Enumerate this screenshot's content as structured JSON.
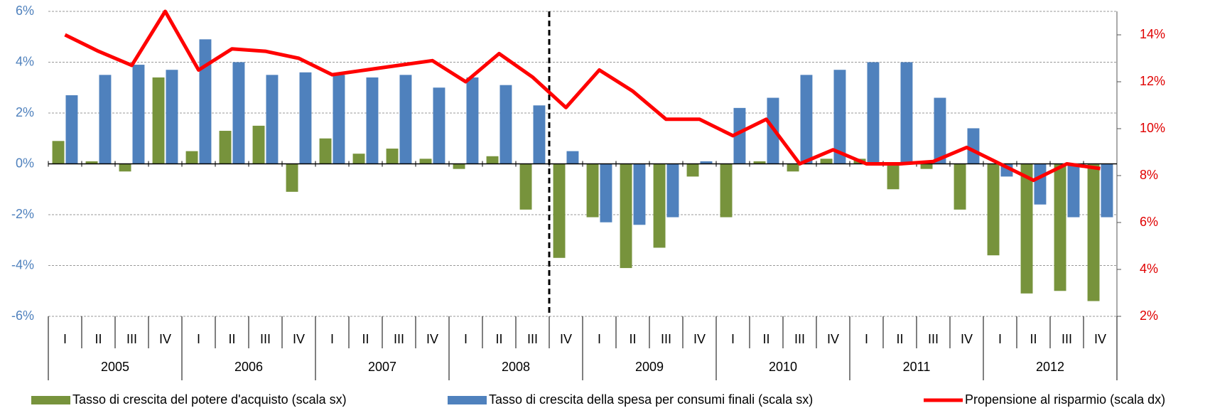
{
  "chart_data": {
    "type": "bar",
    "categories": [
      "I",
      "II",
      "III",
      "IV",
      "I",
      "II",
      "III",
      "IV",
      "I",
      "II",
      "III",
      "IV",
      "I",
      "II",
      "III",
      "IV",
      "I",
      "II",
      "III",
      "IV",
      "I",
      "II",
      "III",
      "IV",
      "I",
      "II",
      "III",
      "IV",
      "I",
      "II",
      "III",
      "IV"
    ],
    "group_labels": [
      "2005",
      "2006",
      "2007",
      "2008",
      "2009",
      "2010",
      "2011",
      "2012"
    ],
    "series": [
      {
        "name": "Tasso di crescita del potere d'acquisto (scala sx)",
        "type": "bar",
        "color": "#77933c",
        "values": [
          0.9,
          0.1,
          -0.3,
          3.4,
          0.5,
          1.3,
          1.5,
          -1.1,
          1.0,
          0.4,
          0.6,
          0.2,
          -0.2,
          0.3,
          -1.8,
          -3.7,
          -2.1,
          -4.1,
          -3.3,
          -0.5,
          -2.1,
          0.1,
          -0.3,
          0.2,
          0.2,
          -1.0,
          -0.2,
          -1.8,
          -3.6,
          -5.1,
          -5.0,
          -5.4
        ]
      },
      {
        "name": "Tasso di crescita della spesa per consumi finali (scala sx)",
        "type": "bar",
        "color": "#4f81bd",
        "values": [
          2.7,
          3.5,
          3.9,
          3.7,
          4.9,
          4.0,
          3.5,
          3.6,
          3.5,
          3.4,
          3.5,
          3.0,
          3.4,
          3.1,
          2.3,
          0.5,
          -2.3,
          -2.4,
          -2.1,
          0.1,
          2.2,
          2.6,
          3.5,
          3.7,
          4.0,
          4.0,
          2.6,
          1.4,
          -0.5,
          -1.6,
          -2.1,
          -2.1
        ]
      },
      {
        "name": "Propensione al risparmio (scala dx)",
        "type": "line",
        "axis": "y2",
        "color": "#ff0000",
        "values": [
          14.0,
          13.3,
          12.7,
          15.0,
          12.5,
          13.4,
          13.3,
          13.0,
          12.3,
          12.5,
          12.7,
          12.9,
          12.0,
          13.2,
          12.2,
          10.9,
          12.5,
          11.6,
          10.4,
          10.4,
          9.7,
          10.4,
          8.5,
          9.1,
          8.5,
          8.5,
          8.6,
          9.2,
          8.5,
          7.8,
          8.5,
          8.3
        ]
      }
    ],
    "ylim": [
      -6,
      6
    ],
    "yticks": [
      {
        "value": -6,
        "label": "-6%"
      },
      {
        "value": -4,
        "label": "-4%"
      },
      {
        "value": -2,
        "label": "-2%"
      },
      {
        "value": 0,
        "label": "0%"
      },
      {
        "value": 2,
        "label": "2%"
      },
      {
        "value": 4,
        "label": "4%"
      },
      {
        "value": 6,
        "label": "6%"
      }
    ],
    "y2lim": [
      2,
      15
    ],
    "y2ticks": [
      {
        "value": 2,
        "label": "2%"
      },
      {
        "value": 4,
        "label": "4%"
      },
      {
        "value": 6,
        "label": "6%"
      },
      {
        "value": 8,
        "label": "8%"
      },
      {
        "value": 10,
        "label": "10%"
      },
      {
        "value": 12,
        "label": "12%"
      },
      {
        "value": 14,
        "label": "14%"
      }
    ],
    "grid": true
  }
}
